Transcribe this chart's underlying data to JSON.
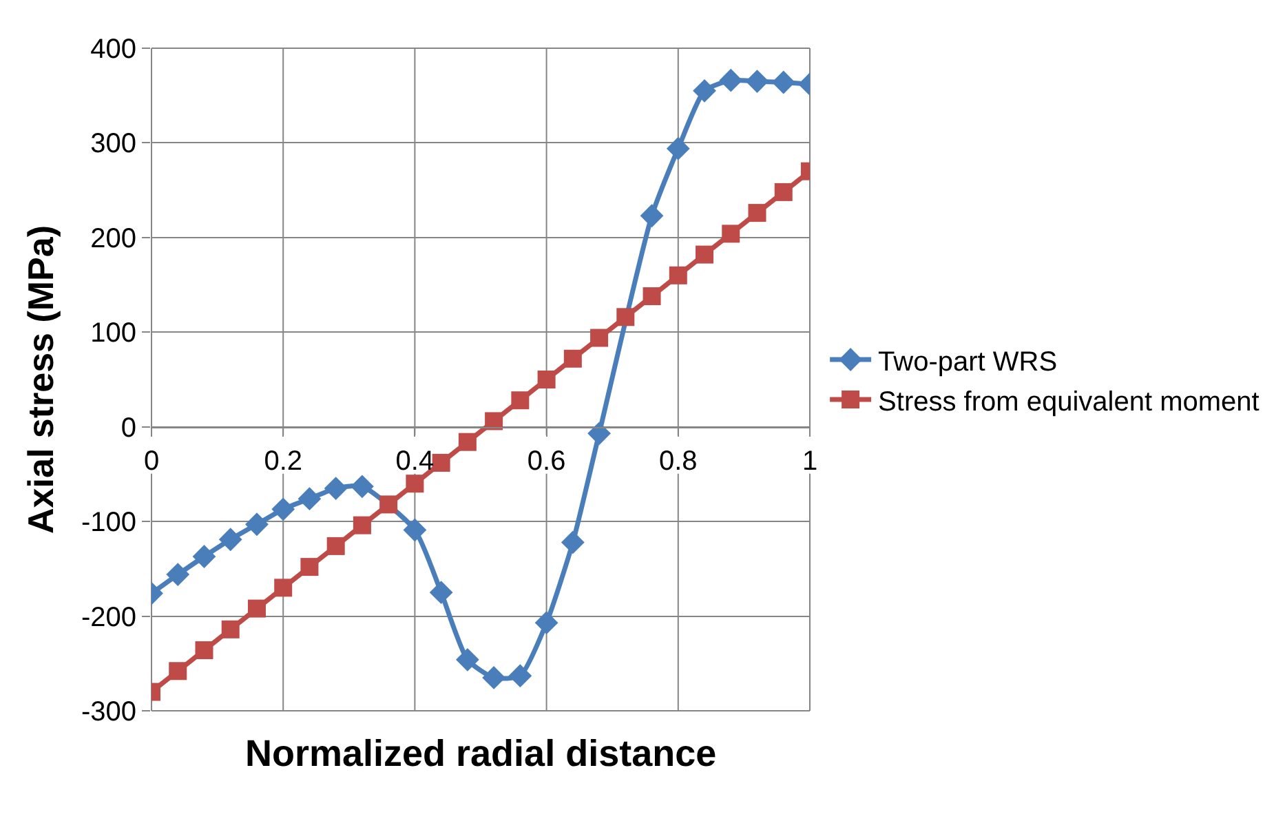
{
  "chart_data": {
    "type": "line",
    "xlabel": "Normalized radial distance",
    "ylabel": "Axial stress (MPa)",
    "x": [
      0,
      0.04,
      0.08,
      0.12,
      0.16,
      0.2,
      0.24,
      0.28,
      0.32,
      0.36,
      0.4,
      0.44,
      0.48,
      0.52,
      0.56,
      0.6,
      0.64,
      0.68,
      0.72,
      0.76,
      0.8,
      0.84,
      0.88,
      0.92,
      0.96,
      1
    ],
    "series": [
      {
        "name": "Two-part WRS",
        "color": "#4a7ebb",
        "marker": "diamond",
        "values": [
          -176,
          -156,
          -137,
          -119,
          -103,
          -87,
          -76,
          -65,
          -63,
          null,
          -109,
          -175,
          -246,
          -265,
          -263,
          -207,
          -122,
          -7,
          null,
          223,
          294,
          355,
          366,
          365,
          364,
          362
        ]
      },
      {
        "name": "Stress from equivalent moment",
        "color": "#be4b48",
        "marker": "square",
        "values": [
          -280,
          -258,
          -236,
          -214,
          -192,
          -170,
          -148,
          -126,
          -104,
          -82,
          -60,
          -38,
          -16,
          6,
          28,
          50,
          72,
          94,
          116,
          138,
          160,
          182,
          204,
          226,
          248,
          270
        ]
      }
    ],
    "xlim": [
      0,
      1
    ],
    "xticks": [
      0,
      0.2,
      0.4,
      0.6,
      0.8,
      1
    ],
    "ylim": [
      -300,
      400
    ],
    "yticks": [
      -300,
      -200,
      -100,
      0,
      100,
      200,
      300,
      400
    ],
    "grid": true,
    "legend": "right",
    "line_style": "solid"
  }
}
